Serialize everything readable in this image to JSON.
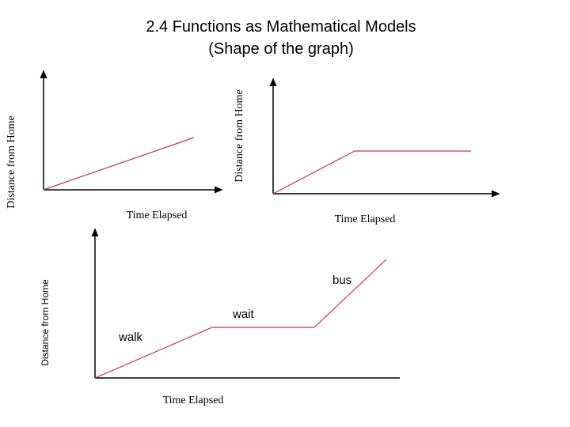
{
  "title": {
    "line1": "2.4 Functions as Mathematical Models",
    "line2": "(Shape of the graph)"
  },
  "graphs": [
    {
      "y_label": "Distance from Home",
      "x_label": "Time Elapsed"
    },
    {
      "y_label": "Distance from Home",
      "x_label": "Time Elapsed"
    },
    {
      "y_label": "Distance from Home",
      "x_label": "Time Elapsed",
      "annotations": [
        "walk",
        "wait",
        "bus"
      ]
    }
  ]
}
